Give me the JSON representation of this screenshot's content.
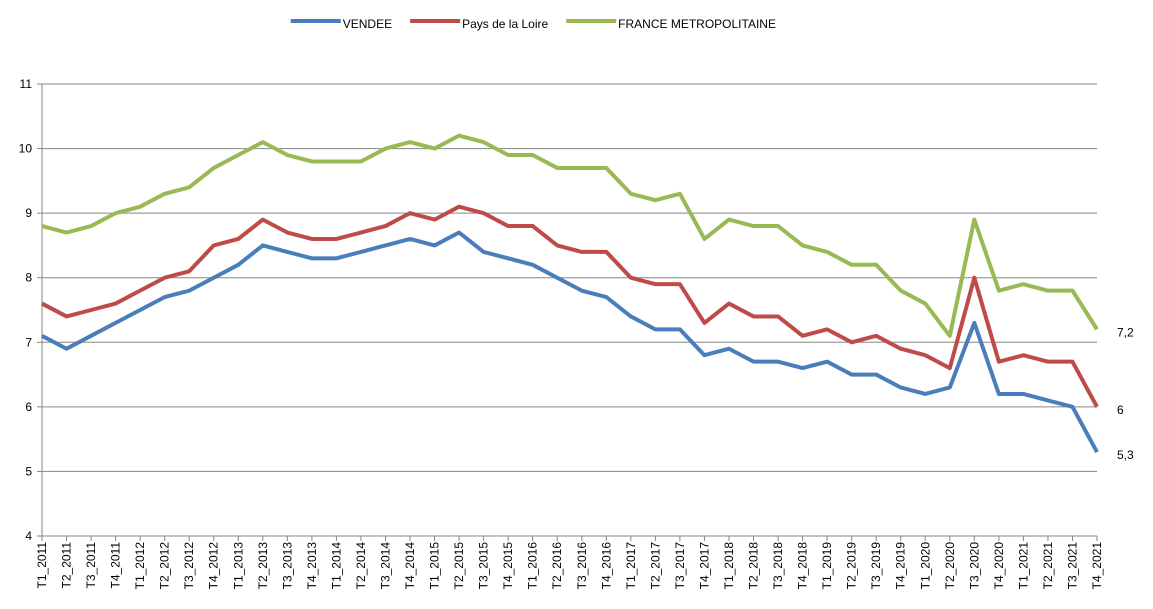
{
  "chart_data": {
    "type": "line",
    "categories": [
      "T1_2011",
      "T2_2011",
      "T3_2011",
      "T4_2011",
      "T1_2012",
      "T2_2012",
      "T3_2012",
      "T4_2012",
      "T1_2013",
      "T2_2013",
      "T3_2013",
      "T4_2013",
      "T1_2014",
      "T2_2014",
      "T3_2014",
      "T4_2014",
      "T1_2015",
      "T2_2015",
      "T3_2015",
      "T4_2015",
      "T1_2016",
      "T2_2016",
      "T3_2016",
      "T4_2016",
      "T1_2017",
      "T2_2017",
      "T3_2017",
      "T4_2017",
      "T1_2018",
      "T2_2018",
      "T3_2018",
      "T4_2018",
      "T1_2019",
      "T2_2019",
      "T3_2019",
      "T4_2019",
      "T1_2020",
      "T2_2020",
      "T3_2020",
      "T4_2020",
      "T1_2021",
      "T2_2021",
      "T3_2021",
      "T4_2021"
    ],
    "series": [
      {
        "name": "VENDEE",
        "color": "#4a7ebb",
        "values": [
          7.1,
          6.9,
          7.1,
          7.3,
          7.5,
          7.7,
          7.8,
          8.0,
          8.2,
          8.5,
          8.4,
          8.3,
          8.3,
          8.4,
          8.5,
          8.6,
          8.5,
          8.7,
          8.4,
          8.3,
          8.2,
          8.0,
          7.8,
          7.7,
          7.4,
          7.2,
          7.2,
          6.8,
          6.9,
          6.7,
          6.7,
          6.6,
          6.7,
          6.5,
          6.5,
          6.3,
          6.2,
          6.3,
          7.3,
          6.2,
          6.2,
          6.1,
          6.0,
          5.3
        ],
        "value_labels": [
          null,
          null,
          null,
          null,
          null,
          null,
          null,
          null,
          null,
          null,
          null,
          null,
          null,
          null,
          null,
          null,
          null,
          null,
          null,
          null,
          null,
          null,
          null,
          null,
          null,
          null,
          null,
          null,
          null,
          null,
          null,
          null,
          null,
          null,
          null,
          null,
          null,
          null,
          null,
          null,
          null,
          null,
          null,
          "5,3"
        ]
      },
      {
        "name": "Pays de la Loire",
        "color": "#be4b48",
        "values": [
          7.6,
          7.4,
          7.5,
          7.6,
          7.8,
          8.0,
          8.1,
          8.5,
          8.6,
          8.9,
          8.7,
          8.6,
          8.6,
          8.7,
          8.8,
          9.0,
          8.9,
          9.1,
          9.0,
          8.8,
          8.8,
          8.5,
          8.4,
          8.4,
          8.0,
          7.9,
          7.9,
          7.3,
          7.6,
          7.4,
          7.4,
          7.1,
          7.2,
          7.0,
          7.1,
          6.9,
          6.8,
          6.6,
          8.0,
          6.7,
          6.8,
          6.7,
          6.7,
          6.0
        ],
        "value_labels": [
          null,
          null,
          null,
          null,
          null,
          null,
          null,
          null,
          null,
          null,
          null,
          null,
          null,
          null,
          null,
          null,
          null,
          null,
          null,
          null,
          null,
          null,
          null,
          null,
          null,
          null,
          null,
          null,
          null,
          null,
          null,
          null,
          null,
          null,
          null,
          null,
          null,
          null,
          null,
          null,
          null,
          null,
          null,
          "6"
        ]
      },
      {
        "name": "FRANCE METROPOLITAINE",
        "color": "#98b954",
        "values": [
          8.8,
          8.7,
          8.8,
          9.0,
          9.1,
          9.3,
          9.4,
          9.7,
          9.9,
          10.1,
          9.9,
          9.8,
          9.8,
          9.8,
          10.0,
          10.1,
          10.0,
          10.2,
          10.1,
          9.9,
          9.9,
          9.7,
          9.7,
          9.7,
          9.3,
          9.2,
          9.3,
          8.6,
          8.9,
          8.8,
          8.8,
          8.5,
          8.4,
          8.2,
          8.2,
          7.8,
          7.6,
          7.1,
          8.9,
          7.8,
          7.9,
          7.8,
          7.8,
          7.2
        ],
        "value_labels": [
          null,
          null,
          null,
          null,
          null,
          null,
          null,
          null,
          null,
          null,
          null,
          null,
          null,
          null,
          null,
          null,
          null,
          null,
          null,
          null,
          null,
          null,
          null,
          null,
          null,
          null,
          null,
          null,
          null,
          null,
          null,
          null,
          null,
          null,
          null,
          null,
          null,
          null,
          null,
          null,
          null,
          null,
          null,
          "7,2"
        ]
      }
    ],
    "ylim": [
      4,
      11
    ],
    "yticks": [
      4,
      5,
      6,
      7,
      8,
      9,
      10,
      11
    ],
    "grid": true,
    "legend": "top"
  }
}
